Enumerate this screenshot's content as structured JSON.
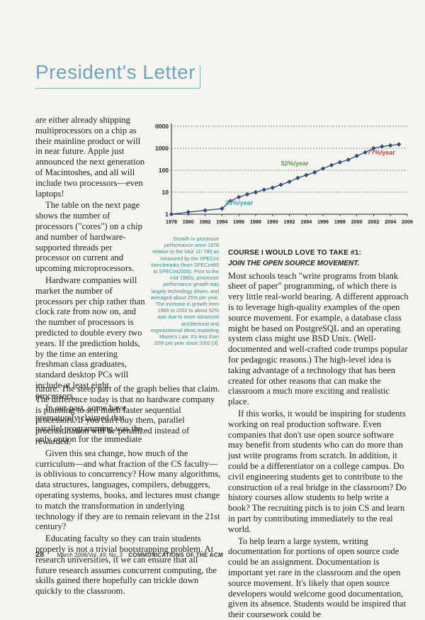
{
  "header": {
    "title": "President's Letter"
  },
  "left_column": {
    "paragraphs": [
      "are either already shipping multiprocessors on a chip as their mainline product or will in near future. Apple just announced the next generation of Macintoshes, and all will include two processors—even laptops!",
      "The table on the next page shows the number of processors (\"cores\") on a chip and number of hardware-supported threads per processor on current and upcoming microprocessors.",
      "Hardware companies will market the number of processors per chip rather than clock rate from now on, and the number of processors is predicted to double every two years. If the prediction holds, by the time an entering freshman class graduates, standard desktop PCs will include at least eight processors.",
      "In our past, some have prematurely claimed that parallel programming was the only option for the immediate"
    ]
  },
  "full_width": {
    "paragraphs": [
      "future. The steep part of the graph belies that claim. The difference today is that no hardware company is planning to sell much faster sequential processors. If you can't buy them, parallel procrastination will be penalized instead of rewarded.",
      "Given this sea change, how much of the curriculum—and what fraction of the CS faculty—is oblivious to concurrency? How many algorithms, data structures, languages, compilers, debuggers, operating systems, books, and lectures must change to match the transformation in underlying technology if they are to remain relevant in the 21st century?",
      "Educating faculty so they can train students properly is not a trivial bootstrapping problem. At research universities, if we can ensure that all future research assumes concurrent computing, the skills gained there hopefully can trickle down quickly to the classroom."
    ]
  },
  "right_column": {
    "course_title": "Course I Would Love to Take #1:",
    "course_subtitle": "Join the Open Source Movement.",
    "paragraphs": [
      "Most schools teach \"write programs from blank sheet of paper\" programming, of which there is very little real-world bearing. A different approach is to leverage high-quality examples of the open source movement. For example, a database class might be based on PostgreSQL and an operating system class might use BSD Unix. (Well-documented and well-crafted code trumps popular for pedagogic reasons.) The high-level idea is taking advantage of a technology that has been created for other reasons that can make the classroom a much more exciting and realistic place.",
      "If this works, it would be inspiring for students working on real production software. Even companies that don't use open source software may benefit from students who can do more than just write programs from scratch. In addition, it could be a differentiator on a college campus. Do civil engineering students get to contribute to the construction of a real bridge in the classroom? Do history courses allow students to help write a book? The recruiting pitch is to join CS and learn in part by contributing immediately to the real world.",
      "To help learn a large system, writing documentation for portions of open source code could be an assignment. Documentation is important yet rare in the classroom and the open source movement. It's likely that open source developers would welcome good documentation, given its absence. Students would be inspired that their coursework could be"
    ]
  },
  "caption": {
    "text": "Growth in processor performance since 1978 relative to the VAX 11/ 780 as measured by the SPECint benchmarks (from SPECint89 to SPECint2000). Prior to the mid-1980s, processor performance growth was largely technology driven, and averaged about 25% per year. The increase in growth from 1986 to 2002 to about 52% was due to more advanced architectural and organizational ideas exploiting Moore's Law. It's less than 20% per year since 2002 [3]."
  },
  "footer": {
    "page": "28",
    "issue": "March 2006/Vol. 49, No. 3",
    "magazine": "COMMUNICATIONS OF THE ACM"
  },
  "chart_data": {
    "type": "line",
    "title": "",
    "xlabel": "",
    "ylabel": "",
    "y_scale": "log",
    "ylim": [
      1,
      10000
    ],
    "y_ticks": [
      "1",
      "10",
      "100",
      "1000",
      "0000"
    ],
    "x_ticks": [
      "1978",
      "1980",
      "1982",
      "1984",
      "1986",
      "1988",
      "1990",
      "1992",
      "1994",
      "1996",
      "1998",
      "2000",
      "2002",
      "2004",
      "2006"
    ],
    "annotations": [
      "25%/year",
      "52%/year",
      "??%/year"
    ],
    "colors": {
      "line": "#2d4f86",
      "marker": "#2d4f86",
      "grid": "#6a6a6a",
      "early_label": "#3aa3b3",
      "mid_label": "#4aa24a",
      "late_label": "#d63b2f"
    },
    "series": [
      {
        "x": [
          1978,
          1980,
          1982,
          1984,
          1985,
          1986,
          1987,
          1988,
          1989,
          1990,
          1991,
          1992,
          1993,
          1994,
          1995,
          1996,
          1997,
          1998,
          1999,
          2000,
          2001,
          2002,
          2003,
          2004,
          2005
        ],
        "y": [
          1,
          1.25,
          1.5,
          1.8,
          4,
          6,
          8,
          10,
          13,
          16,
          22,
          30,
          45,
          60,
          80,
          120,
          170,
          230,
          300,
          450,
          650,
          1000,
          1200,
          1350,
          1500
        ]
      }
    ]
  }
}
